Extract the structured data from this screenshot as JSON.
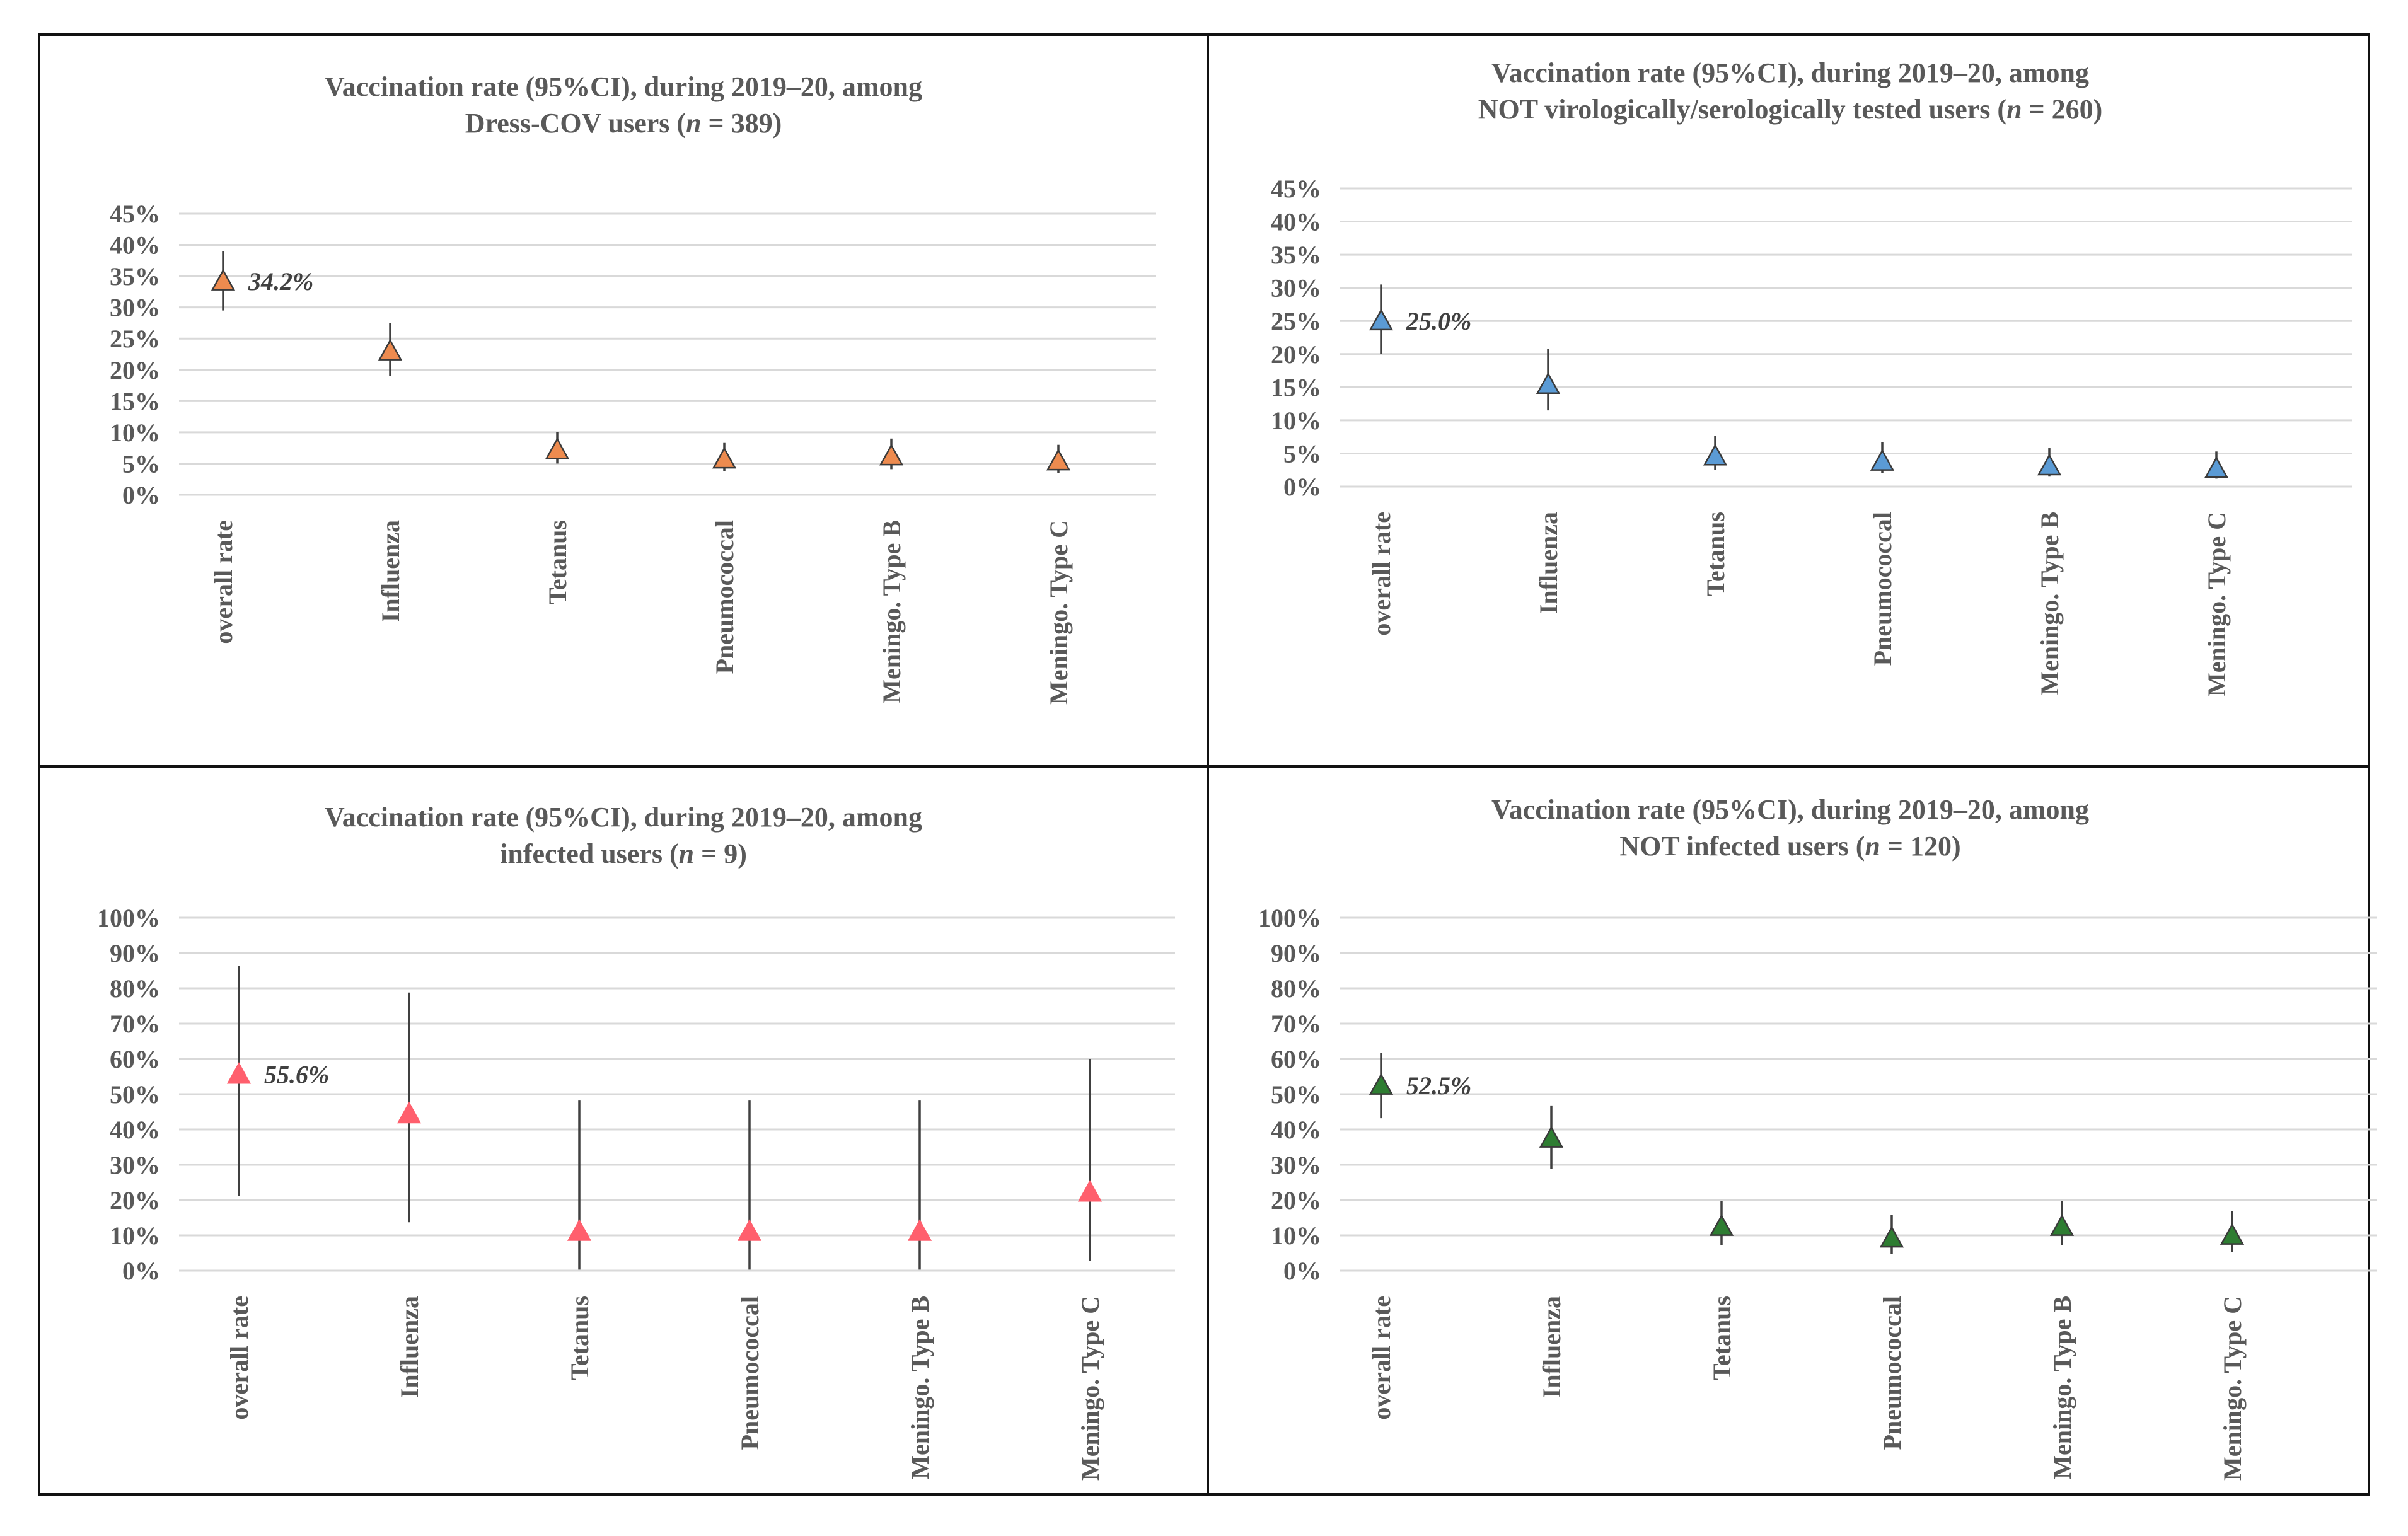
{
  "charts": [
    {
      "title_line1": "Vaccination rate (95%CI), during 2019–20, among",
      "title_line2_prefix": "Dress-COV users (",
      "title_n_symbol": "n",
      "title_line2_suffix": " = 389)",
      "type": "scatter-errorbar",
      "marker_color": "#ED8B4F",
      "y_ticks": [
        "0%",
        "5%",
        "10%",
        "15%",
        "20%",
        "25%",
        "30%",
        "35%",
        "40%",
        "45%"
      ],
      "ylim": [
        0,
        45
      ],
      "categories": [
        "overall rate",
        "Influenza",
        "Tetanus",
        "Pneumococcal",
        "Meningo. Type B",
        "Meningo. Type C"
      ],
      "values": [
        34.2,
        23.0,
        7.2,
        5.7,
        6.2,
        5.4
      ],
      "ci_low": [
        29.5,
        19.0,
        5.0,
        3.8,
        4.1,
        3.5
      ],
      "ci_high": [
        39.0,
        27.5,
        10.0,
        8.3,
        9.0,
        8.0
      ],
      "value_label": "34.2%"
    },
    {
      "title_line1": "Vaccination rate (95%CI), during 2019–20, among",
      "title_line2_prefix": "NOT virologically/serologically tested users (",
      "title_n_symbol": "n",
      "title_line2_suffix": " = 260)",
      "type": "scatter-errorbar",
      "marker_color": "#5B9BD5",
      "y_ticks": [
        "0%",
        "5%",
        "10%",
        "15%",
        "20%",
        "25%",
        "30%",
        "35%",
        "40%",
        "45%"
      ],
      "ylim": [
        0,
        45
      ],
      "categories": [
        "overall rate",
        "Influenza",
        "Tetanus",
        "Pneumococcal",
        "Meningo. Type B",
        "Meningo. Type C"
      ],
      "values": [
        25.0,
        15.4,
        4.6,
        3.8,
        3.1,
        2.7
      ],
      "ci_low": [
        20.0,
        11.5,
        2.5,
        2.0,
        1.5,
        1.2
      ],
      "ci_high": [
        30.5,
        20.8,
        7.7,
        6.7,
        5.8,
        5.3
      ],
      "value_label": "25.0%"
    },
    {
      "title_line1": "Vaccination rate (95%CI), during 2019–20, among",
      "title_line2_prefix": "infected users (",
      "title_n_symbol": "n",
      "title_line2_suffix": " = 9)",
      "type": "scatter-errorbar",
      "marker_color": "#FF5F6D",
      "y_ticks": [
        "0%",
        "10%",
        "20%",
        "30%",
        "40%",
        "50%",
        "60%",
        "70%",
        "80%",
        "90%",
        "100%"
      ],
      "ylim": [
        0,
        100
      ],
      "categories": [
        "overall rate",
        "Influenza",
        "Tetanus",
        "Pneumococcal",
        "Meningo. Type B",
        "Meningo. Type C"
      ],
      "values": [
        55.6,
        44.4,
        11.1,
        11.1,
        11.1,
        22.2
      ],
      "ci_low": [
        21.2,
        13.7,
        0.3,
        0.3,
        0.3,
        2.8
      ],
      "ci_high": [
        86.3,
        78.8,
        48.2,
        48.2,
        48.2,
        60.0
      ],
      "value_label": "55.6%"
    },
    {
      "title_line1": "Vaccination rate (95%CI), during 2019–20, among",
      "title_line2_prefix": "NOT infected users (",
      "title_n_symbol": "n",
      "title_line2_suffix": " = 120)",
      "type": "scatter-errorbar",
      "marker_color": "#2E7D32",
      "y_ticks": [
        "0%",
        "10%",
        "20%",
        "30%",
        "40%",
        "50%",
        "60%",
        "70%",
        "80%",
        "90%",
        "100%"
      ],
      "ylim": [
        0,
        100
      ],
      "categories": [
        "overall rate",
        "Influenza",
        "Tetanus",
        "Pneumococcal",
        "Meningo. Type B",
        "Meningo. Type C"
      ],
      "values": [
        52.5,
        37.5,
        12.5,
        9.2,
        12.5,
        10.0
      ],
      "ci_low": [
        43.2,
        28.8,
        7.2,
        4.7,
        7.2,
        5.3
      ],
      "ci_high": [
        61.7,
        46.8,
        19.8,
        15.8,
        19.8,
        16.8
      ],
      "value_label": "52.5%"
    }
  ]
}
